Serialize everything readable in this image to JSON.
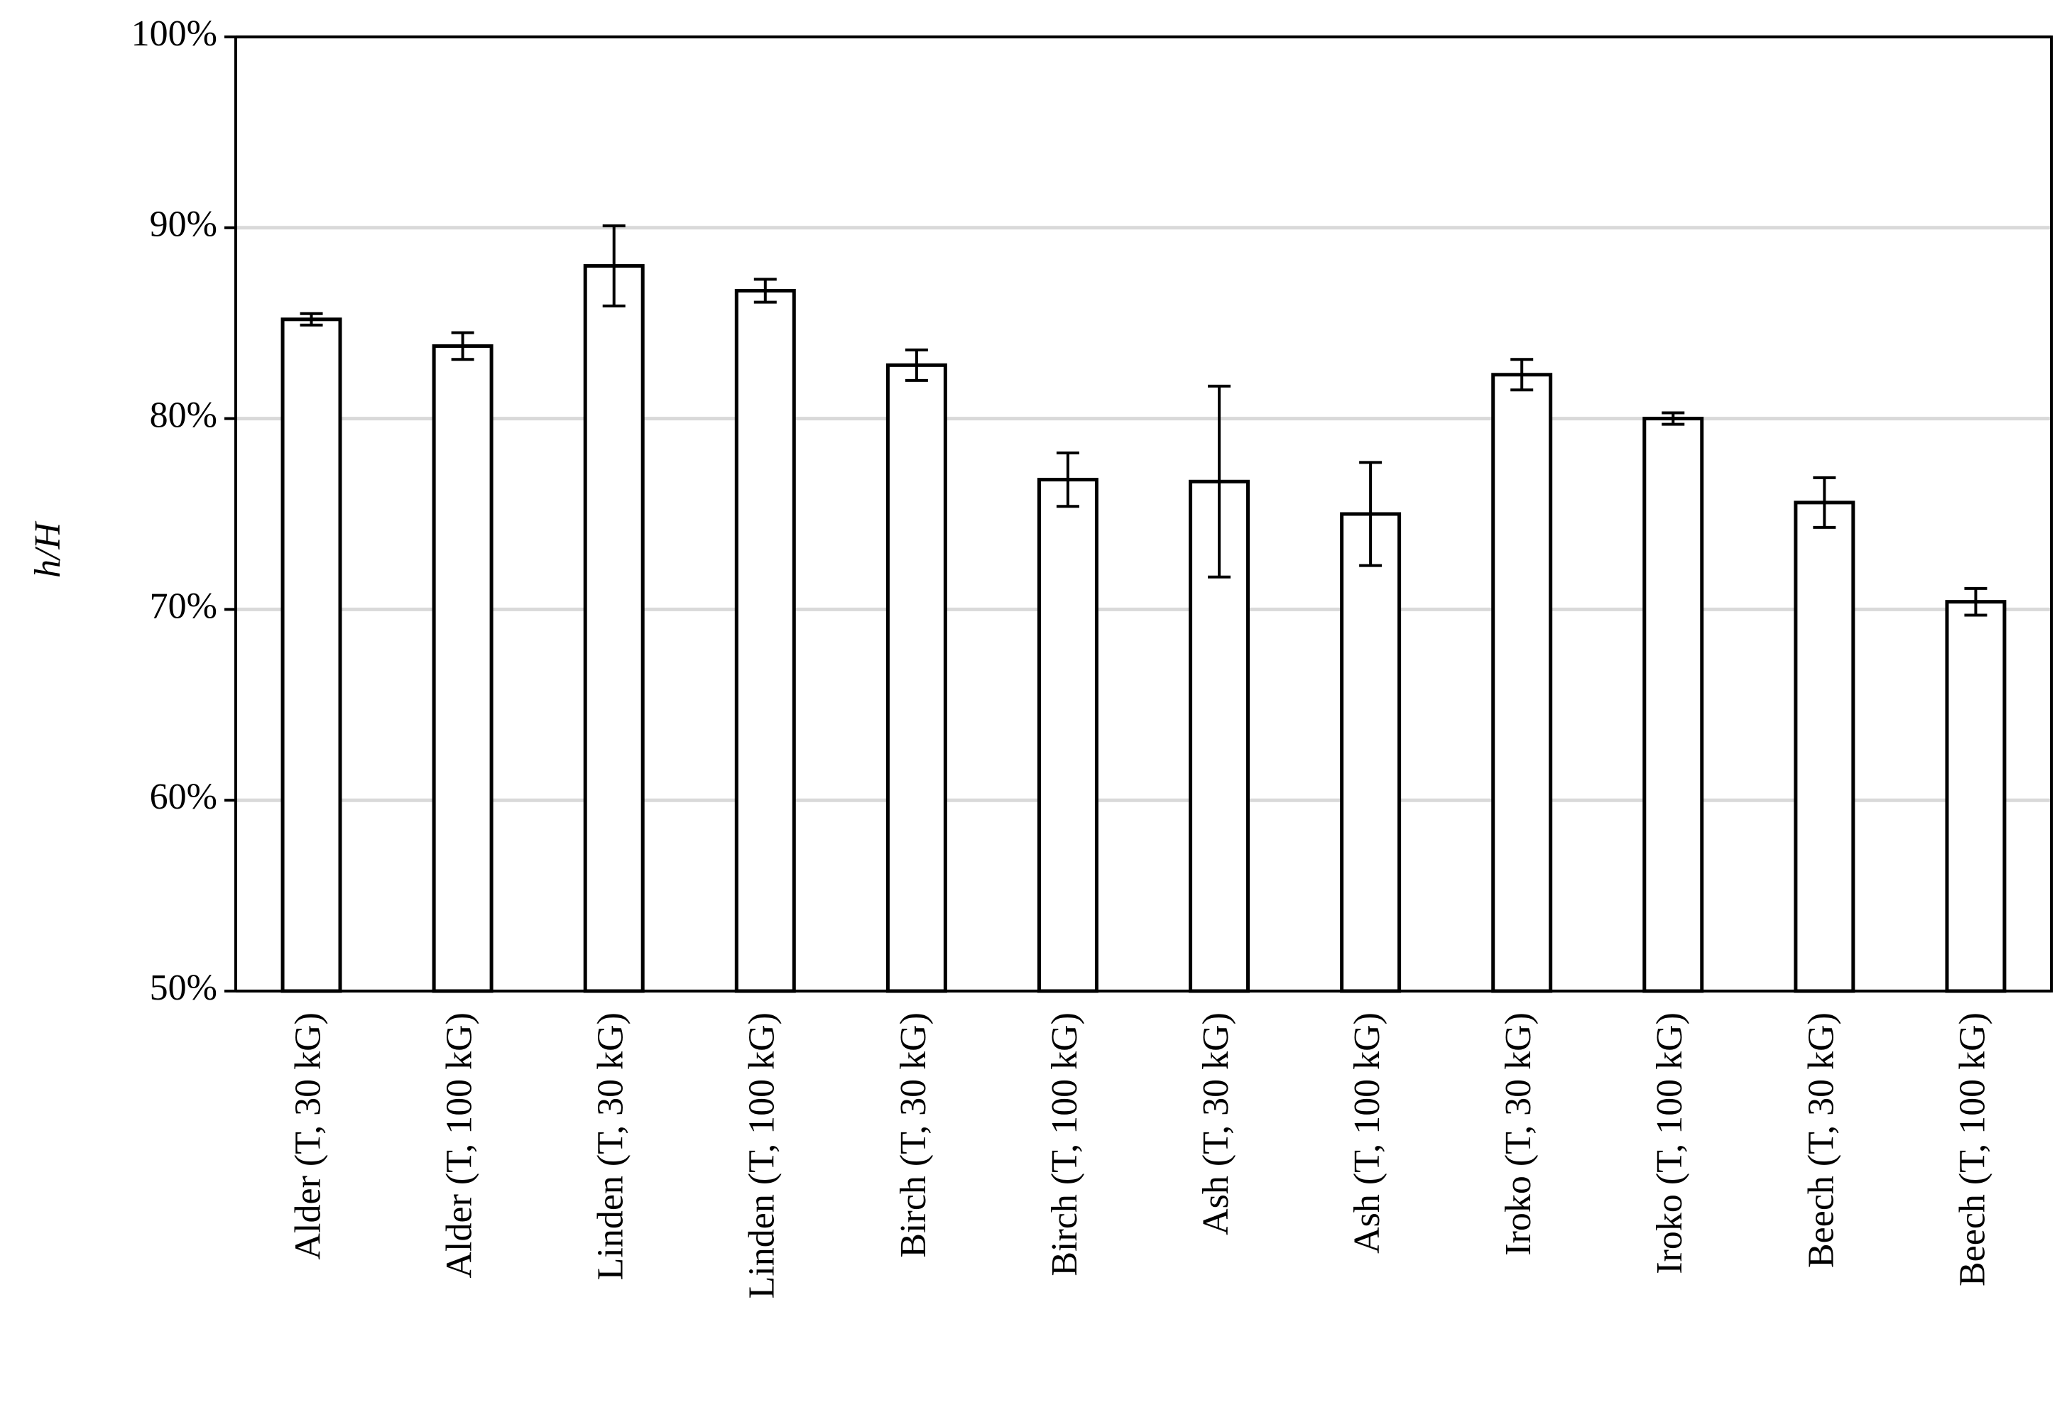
{
  "chart_data": {
    "type": "bar",
    "ylabel": "h/H",
    "categories": [
      "Alder (T, 30 kG)",
      "Alder (T, 100 kG)",
      "Linden (T, 30 kG)",
      "Linden (T, 100 kG)",
      "Birch (T, 30 kG)",
      "Birch (T, 100 kG)",
      "Ash (T, 30 kG)",
      "Ash (T, 100 kG)",
      "Iroko (T, 30 kG)",
      "Iroko (T, 100 kG)",
      "Beech (T, 30 kG)",
      "Beech (T, 100 kG)"
    ],
    "values": [
      85.2,
      83.8,
      88.0,
      86.7,
      82.8,
      76.8,
      76.7,
      75.0,
      82.3,
      80.0,
      75.6,
      70.4
    ],
    "errors": [
      0.3,
      0.7,
      2.1,
      0.6,
      0.8,
      1.4,
      5.0,
      2.7,
      0.8,
      0.3,
      1.3,
      0.7
    ],
    "color": "#ffffff",
    "ylim": [
      50,
      100
    ],
    "yticks": [
      {
        "value": 50,
        "label": "50%"
      },
      {
        "value": 60,
        "label": "60%"
      },
      {
        "value": 70,
        "label": "70%"
      },
      {
        "value": 80,
        "label": "80%"
      },
      {
        "value": 90,
        "label": "90%"
      },
      {
        "value": 100,
        "label": "100%"
      }
    ],
    "grid": true
  }
}
